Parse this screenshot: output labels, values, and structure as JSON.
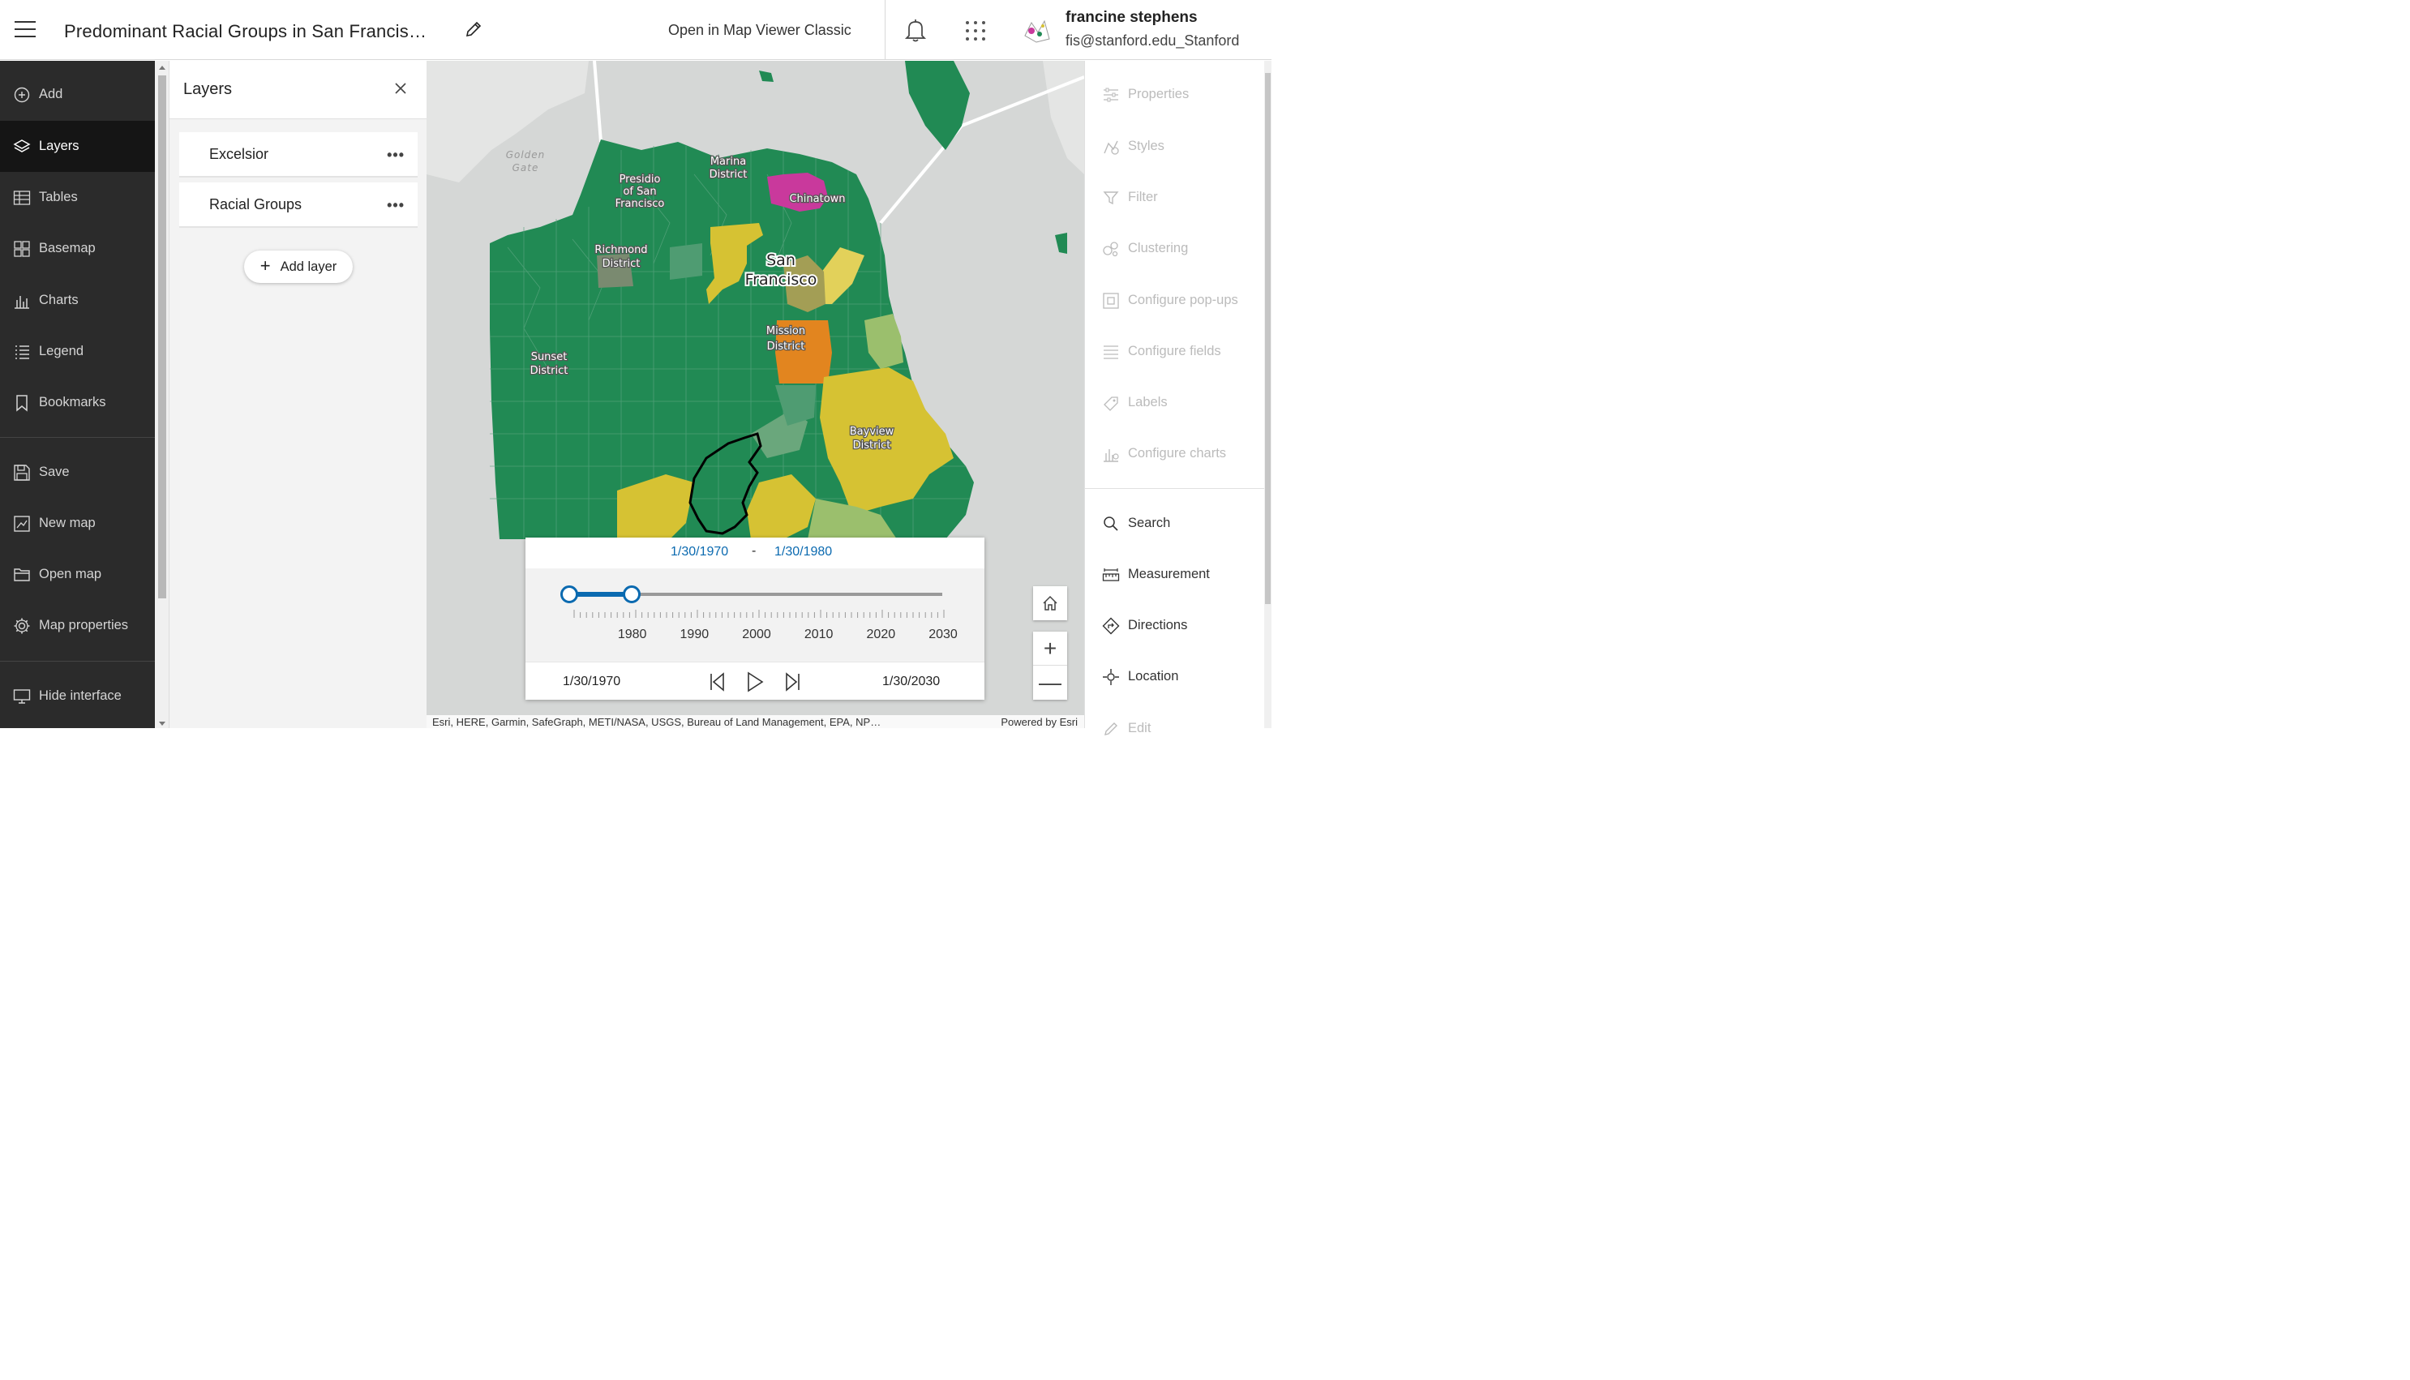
{
  "header": {
    "title": "Predominant Racial Groups in San Francis…",
    "open_classic": "Open in Map Viewer Classic",
    "user_name": "francine stephens",
    "user_email": "fis@stanford.edu_Stanford"
  },
  "left_toolbar": {
    "items": [
      {
        "label": "Add",
        "icon": "plus-circle-icon"
      },
      {
        "label": "Layers",
        "icon": "layers-icon",
        "active": true
      },
      {
        "label": "Tables",
        "icon": "table-icon"
      },
      {
        "label": "Basemap",
        "icon": "basemap-icon"
      },
      {
        "label": "Charts",
        "icon": "chart-icon"
      },
      {
        "label": "Legend",
        "icon": "legend-icon"
      },
      {
        "label": "Bookmarks",
        "icon": "bookmark-icon"
      }
    ],
    "file_items": [
      {
        "label": "Save",
        "icon": "save-icon"
      },
      {
        "label": "New map",
        "icon": "new-map-icon"
      },
      {
        "label": "Open map",
        "icon": "folder-icon"
      },
      {
        "label": "Map properties",
        "icon": "gear-icon"
      }
    ],
    "hide_interface": "Hide interface"
  },
  "layers_panel": {
    "title": "Layers",
    "layers": [
      {
        "name": "Excelsior"
      },
      {
        "name": "Racial Groups"
      }
    ],
    "add_layer": "Add layer"
  },
  "map": {
    "labels": {
      "golden_gate_1": "Golden",
      "golden_gate_2": "Gate",
      "presidio_1": "Presidio",
      "presidio_2": "of San",
      "presidio_3": "Francisco",
      "marina_1": "Marina",
      "marina_2": "District",
      "chinatown": "Chinatown",
      "richmond_1": "Richmond",
      "richmond_2": "District",
      "sf_1": "San",
      "sf_2": "Francisco",
      "mission_1": "Mission",
      "mission_2": "District",
      "sunset_1": "Sunset",
      "sunset_2": "District",
      "bayview_1": "Bayview",
      "bayview_2": "District"
    },
    "colors": {
      "water": "#d5d7d6",
      "green": "#218a54",
      "yellow": "#d6c233",
      "orange": "#e2851f",
      "magenta": "#c9399c",
      "light_green": "#9bbf6d"
    },
    "attribution": "Esri, HERE, Garmin, SafeGraph, METI/NASA, USGS, Bureau of Land Management, EPA, NP…",
    "powered_by": "Powered by Esri"
  },
  "time_slider": {
    "range_start": "1/30/1970",
    "dash": "-",
    "range_end": "1/30/1980",
    "min": "1/30/1970",
    "max": "1/30/2030",
    "tick_labels": [
      "1980",
      "1990",
      "2000",
      "2010",
      "2020",
      "2030"
    ],
    "start_year": 1970,
    "end_year": 2030,
    "selected": [
      1970,
      1980
    ]
  },
  "right_toolbar": {
    "items": [
      {
        "label": "Properties",
        "icon": "properties-icon",
        "enabled": false
      },
      {
        "label": "Styles",
        "icon": "styles-icon",
        "enabled": false
      },
      {
        "label": "Filter",
        "icon": "filter-icon",
        "enabled": false
      },
      {
        "label": "Clustering",
        "icon": "clustering-icon",
        "enabled": false
      },
      {
        "label": "Configure pop-ups",
        "icon": "popup-icon",
        "enabled": false
      },
      {
        "label": "Configure fields",
        "icon": "fields-icon",
        "enabled": false
      },
      {
        "label": "Labels",
        "icon": "labels-icon",
        "enabled": false
      },
      {
        "label": "Configure charts",
        "icon": "chart-config-icon",
        "enabled": false
      }
    ],
    "tools": [
      {
        "label": "Search",
        "icon": "search-icon"
      },
      {
        "label": "Measurement",
        "icon": "measure-icon"
      },
      {
        "label": "Directions",
        "icon": "directions-icon"
      },
      {
        "label": "Location",
        "icon": "location-icon"
      },
      {
        "label": "Edit",
        "icon": "edit-icon"
      }
    ]
  }
}
